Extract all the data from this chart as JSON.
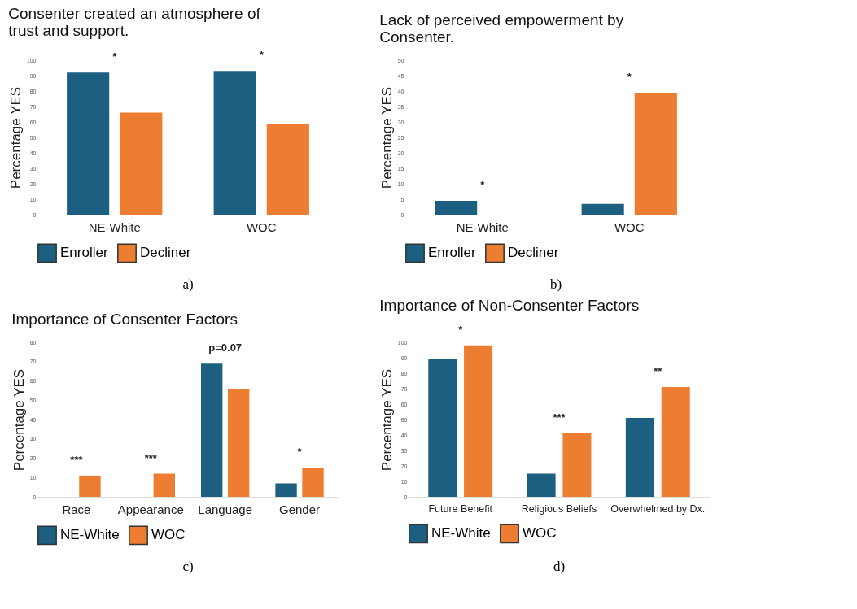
{
  "chart_data": [
    {
      "type": "bar",
      "title": "Consenter created an atmosphere of trust and support.",
      "ylabel": "Percentage YES",
      "categories": [
        "NE-White",
        "WOC"
      ],
      "series": [
        {
          "name": "Enroller",
          "color": "#1d5f80",
          "values": [
            92,
            93
          ]
        },
        {
          "name": "Decliner",
          "color": "#ed7d31",
          "values": [
            66,
            59
          ]
        }
      ],
      "ylim": [
        0,
        100
      ],
      "yticks": [
        0,
        10,
        20,
        30,
        40,
        50,
        60,
        70,
        80,
        90,
        100
      ],
      "legend": "bottom",
      "annotations": [
        "*",
        "*",
        "a)"
      ]
    },
    {
      "type": "bar",
      "title": "Lack of perceived empowerment by Consenter.",
      "ylabel": "Percentage YES",
      "categories": [
        "NE-White",
        "WOC"
      ],
      "series": [
        {
          "name": "Enroller",
          "color": "#1d5f80",
          "values": [
            4.5,
            3.5
          ]
        },
        {
          "name": "Decliner",
          "color": "#ed7d31",
          "values": [
            0,
            39.5
          ]
        }
      ],
      "ylim": [
        0,
        50
      ],
      "yticks": [
        0,
        5,
        10,
        15,
        20,
        25,
        30,
        35,
        40,
        45,
        50
      ],
      "legend": "bottom",
      "annotations": [
        "*",
        "*",
        "b)"
      ]
    },
    {
      "type": "bar",
      "title": "Importance of Consenter Factors",
      "ylabel": "Percentage YES",
      "categories": [
        "Race",
        "Appearance",
        "Language",
        "Gender"
      ],
      "series": [
        {
          "name": "NE-White",
          "color": "#1d5f80",
          "values": [
            0,
            0,
            69,
            7
          ]
        },
        {
          "name": "WOC",
          "color": "#ed7d31",
          "values": [
            11,
            12,
            56,
            15
          ]
        }
      ],
      "ylim": [
        0,
        80
      ],
      "yticks": [
        0,
        10,
        20,
        30,
        40,
        50,
        60,
        70,
        80
      ],
      "legend": "bottom",
      "annotations": [
        "***",
        "***",
        "p=0.07",
        "*",
        "c)"
      ]
    },
    {
      "type": "bar",
      "title": "Importance of Non-Consenter Factors",
      "ylabel": "Percentage YES",
      "categories": [
        "Future Benefit",
        "Religious Beliefs",
        "Overwhelmed by Dx."
      ],
      "series": [
        {
          "name": "NE-White",
          "color": "#1d5f80",
          "values": [
            89,
            15,
            51
          ]
        },
        {
          "name": "WOC",
          "color": "#ed7d31",
          "values": [
            98,
            41,
            71
          ]
        }
      ],
      "ylim": [
        0,
        100
      ],
      "yticks": [
        0,
        10,
        20,
        30,
        40,
        50,
        60,
        70,
        80,
        90,
        100
      ],
      "legend": "bottom",
      "annotations": [
        "*",
        "***",
        "**",
        "d)"
      ]
    }
  ]
}
